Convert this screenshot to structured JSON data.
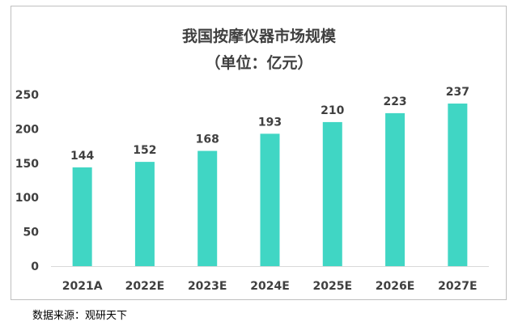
{
  "chart_data": {
    "type": "bar",
    "title": "我国按摩仪器市场规模",
    "subtitle": "（单位：亿元）",
    "categories": [
      "2021A",
      "2022E",
      "2023E",
      "2024E",
      "2025E",
      "2026E",
      "2027E"
    ],
    "values": [
      144,
      152,
      168,
      193,
      210,
      223,
      237
    ],
    "yticks": [
      0,
      50,
      100,
      150,
      200,
      250
    ],
    "ylim": [
      0,
      250
    ],
    "grid": false,
    "legend": "none",
    "bar_color": "#40d6c4"
  },
  "source": "数据来源：观研天下"
}
